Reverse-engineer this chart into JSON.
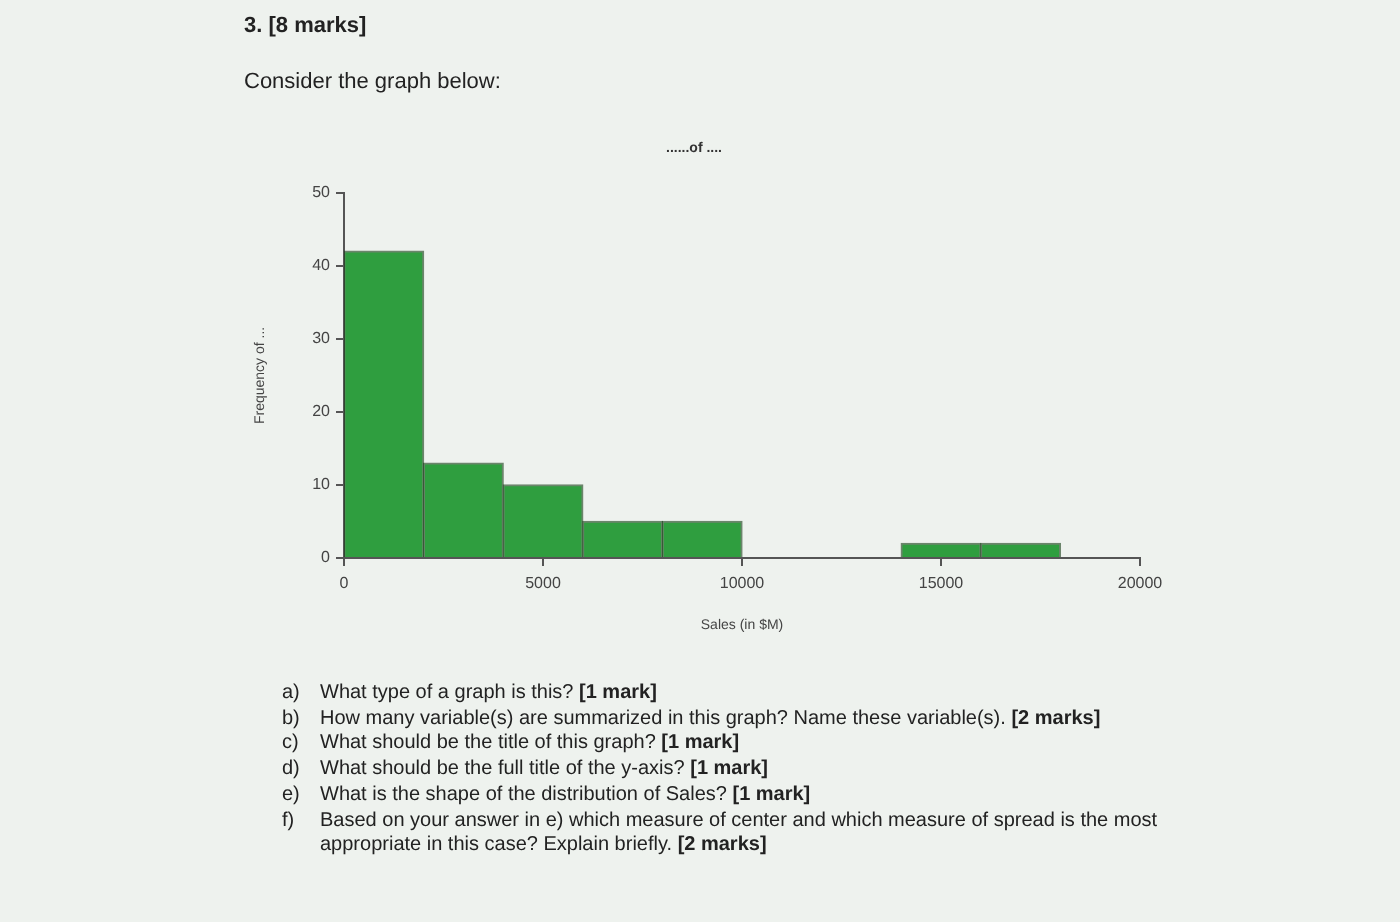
{
  "chart_data": {
    "type": "histogram",
    "title": "......of ....",
    "xlabel": "Sales (in $M)",
    "ylabel": "Frequency of ...",
    "bins": [
      0,
      2000,
      4000,
      6000,
      8000,
      10000,
      12000,
      14000,
      16000,
      18000
    ],
    "values": [
      42,
      13,
      10,
      5,
      5,
      0,
      0,
      2,
      2
    ],
    "color": "#2f9e3f",
    "xlim": [
      0,
      20000
    ],
    "xticks": [
      0,
      5000,
      10000,
      15000,
      20000
    ],
    "ylim": [
      0,
      50
    ],
    "yticks": [
      0,
      10,
      20,
      30,
      40,
      50
    ],
    "annotations": [
      "3. [8 marks]",
      "Consider the graph below:",
      "a) What type of a graph is this? [1 mark]",
      "b) How many variable(s) are summarized in this graph? Name these variable(s). [2 marks]",
      "c) What should be the title of this graph? [1 mark]",
      "d) What should be the full title of the y-axis? [1 mark]",
      "e) What is the shape of the distribution of Sales? [1 mark]",
      "f) Based on your answer in e) which measure of center and which measure of spread is the most appropriate in this case? Explain briefly. [2 marks]"
    ]
  }
}
